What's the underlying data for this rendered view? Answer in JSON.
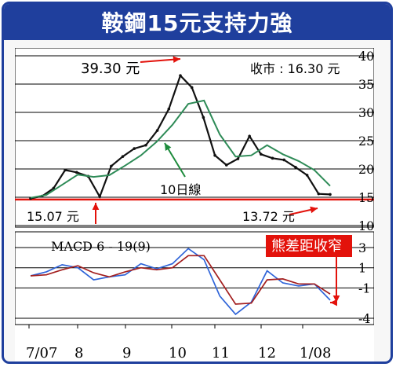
{
  "header": {
    "title": "鞍鋼15元支持力強"
  },
  "colors": {
    "brand_blue": "#1f3f9d",
    "accent_red": "#e3120b",
    "ma_green": "#2e8b57",
    "macd_blue": "#2f64d8",
    "macd_signal": "#a31f1f",
    "price": "#111111"
  },
  "chart_data": [
    {
      "type": "line",
      "subtype": "candlestick-price-with-moving-average",
      "title": "",
      "xlabel": "",
      "ylabel": "",
      "ylim": [
        10,
        40
      ],
      "yticks": [
        10,
        15,
        20,
        25,
        30,
        35,
        40
      ],
      "x_tick_labels": [
        "7/07",
        "8",
        "9",
        "10",
        "11",
        "12",
        "1/08"
      ],
      "grid": true,
      "legend": "none",
      "series": [
        {
          "name": "",
          "x": [
            "7/07",
            "7/07",
            "7/07",
            "7/07",
            "8",
            "8",
            "8",
            "8",
            "9",
            "9",
            "9",
            "9",
            "10",
            "10",
            "10",
            "10",
            "11",
            "11",
            "11",
            "11",
            "12",
            "12",
            "12",
            "12",
            "1/08",
            "1/08",
            "1/08"
          ],
          "values": [
            14.8,
            15.2,
            16.6,
            19.8,
            19.4,
            18.7,
            15.1,
            20.5,
            22.2,
            23.6,
            24.2,
            26.8,
            30.6,
            36.5,
            34.4,
            29.1,
            22.4,
            20.7,
            21.8,
            25.8,
            22.6,
            21.9,
            21.6,
            20.3,
            18.9,
            15.6,
            15.5
          ]
        },
        {
          "name": "10日線",
          "x": [
            "7/07",
            "7/07",
            "7/07",
            "8",
            "8",
            "8",
            "9",
            "9",
            "9",
            "10",
            "10",
            "10",
            "11",
            "11",
            "11",
            "12",
            "12",
            "12",
            "1/08",
            "1/08"
          ],
          "values": [
            14.9,
            15.4,
            17.2,
            19.0,
            18.6,
            18.9,
            20.6,
            22.4,
            24.8,
            27.8,
            31.5,
            32.1,
            26.1,
            22.2,
            22.4,
            24.2,
            22.6,
            21.4,
            19.8,
            17.0
          ]
        }
      ],
      "annotations": [
        "39.30 元",
        "15.07 元",
        "13.72 元",
        "10日線"
      ],
      "reference_line": {
        "value": 14.6,
        "color": "#e3120b"
      },
      "readout": {
        "label": "收市",
        "value": "16.30 元"
      }
    },
    {
      "type": "line",
      "title": "MACD 6 - 19(9)",
      "xlabel": "",
      "ylabel": "",
      "ylim": [
        -4,
        3
      ],
      "yticks": [
        3,
        1,
        -1,
        -4
      ],
      "x_tick_labels": [
        "7/07",
        "8",
        "9",
        "10",
        "11",
        "12",
        "1/08"
      ],
      "grid": true,
      "legend": "none",
      "series": [
        {
          "name": "",
          "x": [
            "7/07",
            "7/07",
            "7/07",
            "8",
            "8",
            "8",
            "9",
            "9",
            "9",
            "10",
            "10",
            "10",
            "11",
            "11",
            "11",
            "12",
            "12",
            "12",
            "1/08",
            "1/08"
          ],
          "values": [
            0.2,
            0.6,
            1.3,
            1.0,
            -0.2,
            0.1,
            0.3,
            1.4,
            0.9,
            1.4,
            2.9,
            1.8,
            -1.8,
            -3.6,
            -2.4,
            0.7,
            -0.5,
            -0.8,
            -0.6,
            -2.2
          ]
        },
        {
          "name": "",
          "x": [
            "7/07",
            "7/07",
            "7/07",
            "8",
            "8",
            "8",
            "9",
            "9",
            "9",
            "10",
            "10",
            "10",
            "11",
            "11",
            "11",
            "12",
            "12",
            "12",
            "1/08",
            "1/08"
          ],
          "values": [
            0.2,
            0.3,
            0.8,
            1.2,
            0.5,
            0.1,
            0.6,
            1.0,
            0.8,
            1.0,
            2.2,
            2.2,
            -0.2,
            -2.6,
            -2.5,
            -0.2,
            -0.1,
            -0.6,
            -0.6,
            -1.6
          ]
        }
      ],
      "annotations": [
        "熊差距收窄"
      ]
    }
  ]
}
